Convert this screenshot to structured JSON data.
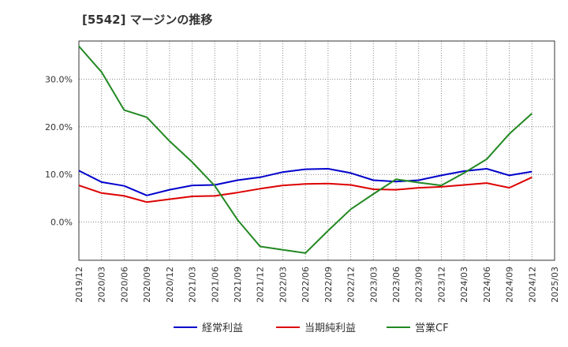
{
  "chart_data": {
    "type": "line",
    "title": "[5542]  マージンの推移",
    "xlabel": "",
    "ylabel": "",
    "x": [
      "2019/12",
      "2020/03",
      "2020/06",
      "2020/09",
      "2020/12",
      "2021/03",
      "2021/06",
      "2021/09",
      "2021/12",
      "2022/03",
      "2022/06",
      "2022/09",
      "2022/12",
      "2023/03",
      "2023/06",
      "2023/09",
      "2023/12",
      "2024/03",
      "2024/06",
      "2024/09",
      "2024/12",
      "2025/03"
    ],
    "ylim": [
      -8,
      38
    ],
    "yticks": [
      0,
      10,
      20,
      30
    ],
    "ytick_labels": [
      "0.0%",
      "10.0%",
      "20.0%",
      "30.0%"
    ],
    "grid": true,
    "legend_position": "bottom",
    "series": [
      {
        "name": "経常利益",
        "color": "#0000cc",
        "values": [
          10.8,
          8.4,
          7.6,
          5.6,
          6.8,
          7.7,
          7.8,
          8.8,
          9.4,
          10.5,
          11.1,
          11.2,
          10.3,
          8.8,
          8.5,
          8.8,
          9.8,
          10.7,
          11.2,
          9.8,
          10.6,
          null
        ]
      },
      {
        "name": "当期純利益",
        "color": "#dd0000",
        "values": [
          7.7,
          6.1,
          5.5,
          4.2,
          4.8,
          5.4,
          5.5,
          6.2,
          7.0,
          7.7,
          8.0,
          8.1,
          7.8,
          6.9,
          6.8,
          7.2,
          7.4,
          7.8,
          8.2,
          7.2,
          9.4,
          null
        ]
      },
      {
        "name": "営業CF",
        "color": "#228822",
        "values": [
          36.9,
          31.5,
          23.5,
          22.0,
          17.0,
          12.6,
          7.6,
          0.5,
          -5.1,
          -5.8,
          -6.5,
          -1.8,
          2.7,
          5.9,
          9.0,
          8.3,
          7.7,
          10.3,
          13.2,
          18.5,
          22.8,
          null
        ]
      }
    ]
  }
}
